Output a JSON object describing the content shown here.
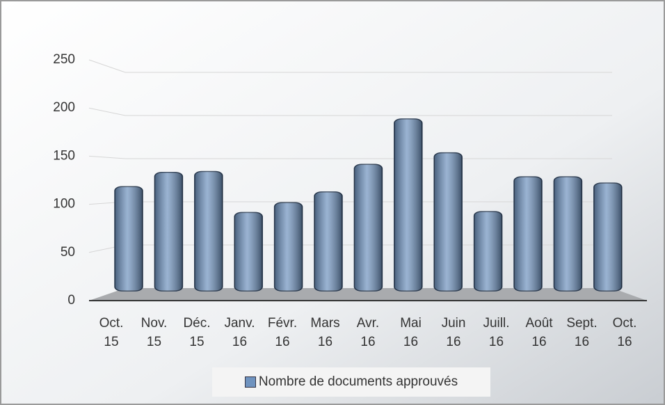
{
  "chart_data": {
    "type": "bar",
    "categories": [
      "Oct. 15",
      "Nov. 15",
      "Déc. 15",
      "Janv. 16",
      "Févr. 16",
      "Mars 16",
      "Avr. 16",
      "Mai 16",
      "Juin 16",
      "Juill. 16",
      "Août 16",
      "Sept. 16",
      "Oct. 16"
    ],
    "series": [
      {
        "name": "Nombre de documents approuvés",
        "color": "#6f93bf",
        "values": [
          117,
          133,
          134,
          88,
          99,
          111,
          142,
          193,
          155,
          89,
          128,
          128,
          121
        ]
      }
    ],
    "ylim": [
      0,
      250
    ],
    "yticks": [
      0,
      50,
      100,
      150,
      200,
      250
    ],
    "grid": true,
    "legend": "bottom"
  }
}
